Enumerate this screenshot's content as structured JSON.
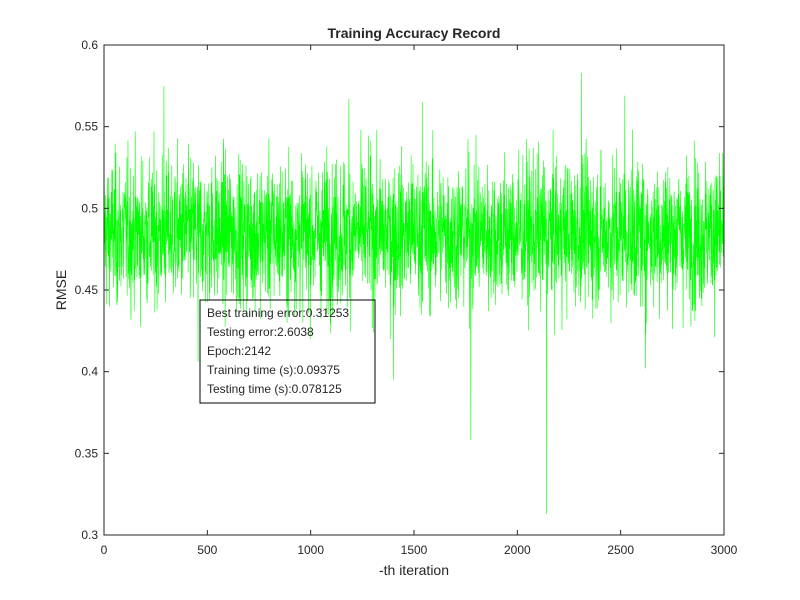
{
  "chart_data": {
    "type": "line",
    "title": "Training Accuracy Record",
    "xlabel": "-th iteration",
    "ylabel": "RMSE",
    "xlim": [
      0,
      3000
    ],
    "ylim": [
      0.3,
      0.6
    ],
    "xticks": [
      0,
      500,
      1000,
      1500,
      2000,
      2500,
      3000
    ],
    "yticks": [
      0.3,
      0.35,
      0.4,
      0.45,
      0.5,
      0.55,
      0.6
    ],
    "xtick_labels": [
      "0",
      "500",
      "1000",
      "1500",
      "2000",
      "2500",
      "3000"
    ],
    "ytick_labels": [
      "0.3",
      "0.35",
      "0.4",
      "0.45",
      "0.5",
      "0.55",
      "0.6"
    ],
    "grid": false,
    "series": [
      {
        "color": "#00ff00",
        "approx_mean": 0.485,
        "approx_spread_typical": [
          0.44,
          0.53
        ],
        "x_range": [
          1,
          3000
        ],
        "notable_points": [
          {
            "x": 290,
            "y": 0.575
          },
          {
            "x": 1185,
            "y": 0.567
          },
          {
            "x": 1540,
            "y": 0.565
          },
          {
            "x": 2310,
            "y": 0.583
          },
          {
            "x": 2520,
            "y": 0.569
          },
          {
            "x": 1775,
            "y": 0.358
          },
          {
            "x": 2142,
            "y": 0.313
          },
          {
            "x": 1400,
            "y": 0.395
          },
          {
            "x": 2620,
            "y": 0.402
          },
          {
            "x": 455,
            "y": 0.406
          }
        ]
      }
    ],
    "annotation_box": {
      "lines": [
        "Best training error:0.31253",
        "Testing error:2.6038",
        "Epoch:2142",
        "Training time (s):0.09375",
        "Testing time (s):0.078125"
      ]
    }
  }
}
